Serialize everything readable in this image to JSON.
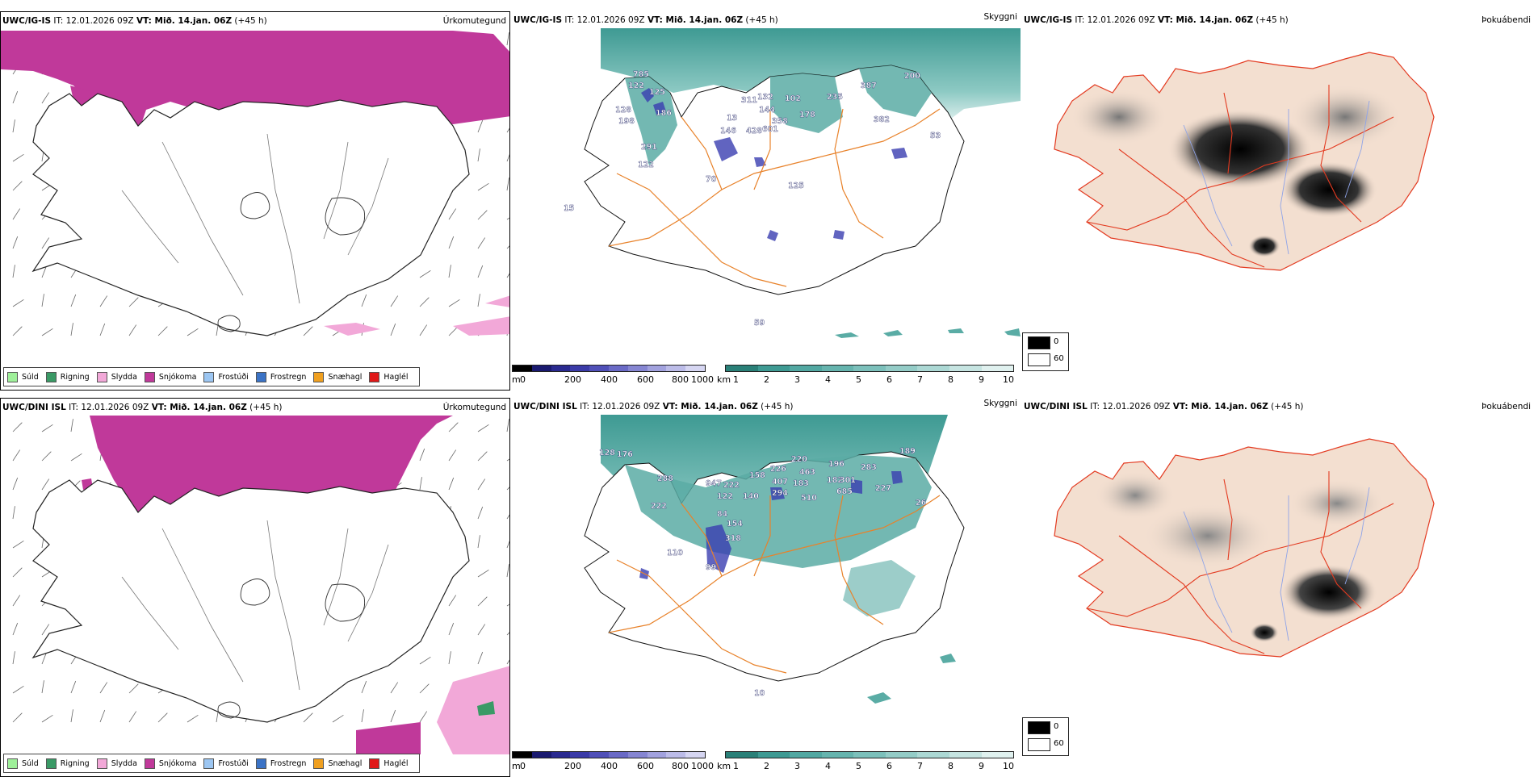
{
  "colors": {
    "snow_magenta": "#c0399a",
    "sea_teal": "#3e9a93",
    "land_tan": "#f3dfd0",
    "road_orange": "#e8822a",
    "road_red": "#e33a20",
    "river_blue": "#8fa4e8"
  },
  "rows": [
    {
      "panels": [
        {
          "model": "UWC/IG-IS",
          "it": "IT: 12.01.2026 09Z",
          "vt": "VT: Mið. 14.jan. 06Z",
          "lead": "(+45 h)",
          "field": "Úrkomutegund"
        },
        {
          "model": "UWC/IG-IS",
          "it": "IT: 12.01.2026 09Z",
          "vt": "VT: Mið. 14.jan. 06Z",
          "lead": "(+45 h)",
          "field": "Skyggni"
        },
        {
          "model": "UWC/IG-IS",
          "it": "IT: 12.01.2026 09Z",
          "vt": "VT: Mið. 14.jan. 06Z",
          "lead": "(+45 h)",
          "field": "Þokuábendi"
        }
      ],
      "labels": [
        {
          "t": "785"
        },
        {
          "t": "122"
        },
        {
          "t": "125"
        },
        {
          "t": "128"
        },
        {
          "t": "198"
        },
        {
          "t": "186"
        },
        {
          "t": "291"
        },
        {
          "t": "122"
        },
        {
          "t": "13"
        },
        {
          "t": "146"
        },
        {
          "t": "311"
        },
        {
          "t": "132"
        },
        {
          "t": "144"
        },
        {
          "t": "428"
        },
        {
          "t": "601"
        },
        {
          "t": "358"
        },
        {
          "t": "102"
        },
        {
          "t": "178"
        },
        {
          "t": "235"
        },
        {
          "t": "387"
        },
        {
          "t": "200"
        },
        {
          "t": "382"
        },
        {
          "t": "53"
        },
        {
          "t": "125"
        },
        {
          "t": "70"
        },
        {
          "t": "15"
        },
        {
          "t": "59"
        }
      ]
    },
    {
      "panels": [
        {
          "model": "UWC/DINI ISL",
          "it": "IT: 12.01.2026 09Z",
          "vt": "VT: Mið. 14.jan. 06Z",
          "lead": "(+45 h)",
          "field": "Úrkomutegund"
        },
        {
          "model": "UWC/DINI ISL",
          "it": "IT: 12.01.2026 09Z",
          "vt": "VT: Mið. 14.jan. 06Z",
          "lead": "(+45 h)",
          "field": "Skyggni"
        },
        {
          "model": "UWC/DINI ISL",
          "it": "IT: 12.01.2026 09Z",
          "vt": "VT: Mið. 14.jan. 06Z",
          "lead": "(+45 h)",
          "field": "Þokuábendi"
        }
      ],
      "labels": [
        {
          "t": "128"
        },
        {
          "t": "176"
        },
        {
          "t": "288"
        },
        {
          "t": "947"
        },
        {
          "t": "222"
        },
        {
          "t": "122"
        },
        {
          "t": "140"
        },
        {
          "t": "158"
        },
        {
          "t": "226"
        },
        {
          "t": "407"
        },
        {
          "t": "294"
        },
        {
          "t": "220"
        },
        {
          "t": "463"
        },
        {
          "t": "183"
        },
        {
          "t": "510"
        },
        {
          "t": "196"
        },
        {
          "t": "182"
        },
        {
          "t": "301"
        },
        {
          "t": "685"
        },
        {
          "t": "283"
        },
        {
          "t": "227"
        },
        {
          "t": "189"
        },
        {
          "t": "84"
        },
        {
          "t": "154"
        },
        {
          "t": "318"
        },
        {
          "t": "110"
        },
        {
          "t": "99"
        },
        {
          "t": "222"
        },
        {
          "t": "26"
        },
        {
          "t": "10"
        }
      ]
    }
  ],
  "precip_legend": [
    {
      "label": "Súld",
      "color": "#9ff09a"
    },
    {
      "label": "Rigning",
      "color": "#3a9a66"
    },
    {
      "label": "Slydda",
      "color": "#f2a8d8"
    },
    {
      "label": "Snjókoma",
      "color": "#c0399a"
    },
    {
      "label": "Frostúði",
      "color": "#9cc6f2"
    },
    {
      "label": "Frostregn",
      "color": "#3b73c6"
    },
    {
      "label": "Snæhagl",
      "color": "#f0a020"
    },
    {
      "label": "Haglél",
      "color": "#e01818"
    }
  ],
  "ceiling_scale": {
    "unit": "m",
    "ticks": [
      "0",
      "200",
      "400",
      "600",
      "800",
      "1000"
    ]
  },
  "visibility_scale": {
    "unit": "km",
    "ticks": [
      "1",
      "2",
      "3",
      "4",
      "5",
      "6",
      "7",
      "8",
      "9",
      "10"
    ]
  },
  "cloud_scale": {
    "ticks": [
      "0",
      "60"
    ]
  }
}
